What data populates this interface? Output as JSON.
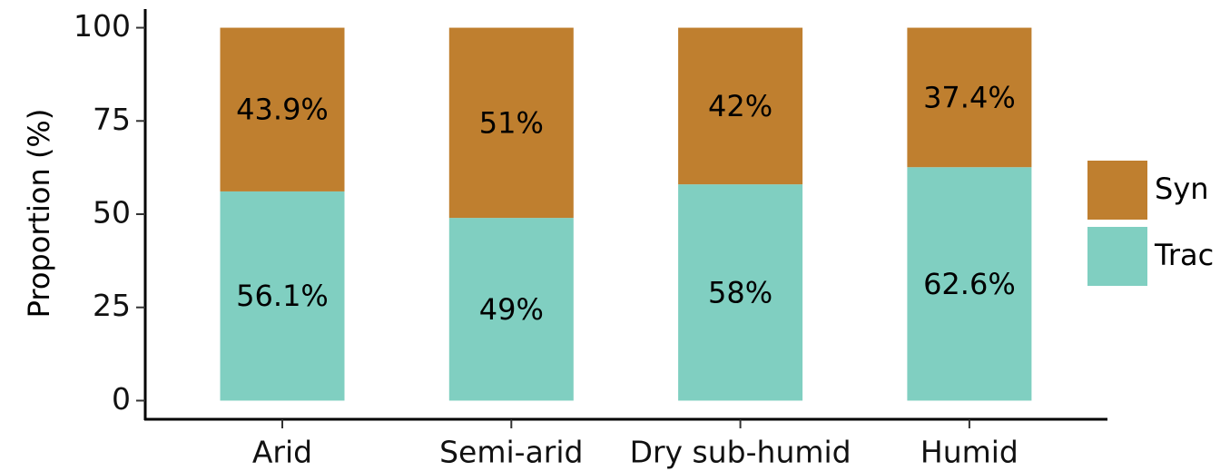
{
  "chart_data": {
    "type": "stacked_bar",
    "y_label": "Proportion (%)",
    "categories": [
      "Arid",
      "Semi-arid",
      "Dry sub-humid",
      "Humid"
    ],
    "series": [
      {
        "name": "Syn",
        "color": "#bf7f2f",
        "values": [
          43.9,
          51,
          42,
          37.4
        ],
        "value_labels": [
          "43.9%",
          "51%",
          "42%",
          "37.4%"
        ]
      },
      {
        "name": "Trac",
        "color": "#80cfc1",
        "values": [
          56.1,
          49,
          58,
          62.6
        ],
        "value_labels": [
          "56.1%",
          "49%",
          "58%",
          "62.6%"
        ]
      }
    ],
    "ylim": [
      -5,
      105
    ],
    "yticks": [
      0,
      25,
      50,
      75,
      100
    ]
  }
}
